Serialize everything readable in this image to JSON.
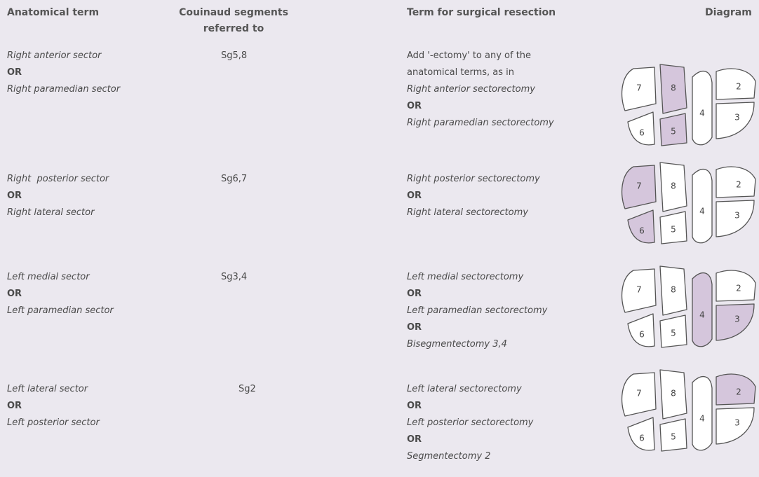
{
  "header": {
    "anatomical_term": "Anatomical term",
    "couinaud": [
      "Couinaud segments",
      "referred to"
    ],
    "resection": "Term for surgical resection",
    "diagram": "Diagram"
  },
  "rows": [
    {
      "term": [
        "Right anterior sector",
        "OR",
        "Right paramedian sector"
      ],
      "segments": "Sg5,8",
      "resection": [
        "Add '-ectomy' to any of the",
        "anatomical terms, as in",
        "Right anterior sectorectomy",
        "OR",
        "Right paramedian sectorectomy"
      ],
      "diagram": {
        "labels": [
          "7",
          "8",
          "2",
          "4",
          "3",
          "6",
          "5"
        ],
        "highlighted": [
          false,
          true,
          false,
          false,
          false,
          false,
          true
        ]
      }
    },
    {
      "term": [
        "Right  posterior sector",
        "OR",
        "Right lateral sector"
      ],
      "segments": "Sg6,7",
      "resection": [
        "Right posterior sectorectomy",
        "OR",
        "Right lateral sectorectomy"
      ],
      "diagram": {
        "labels": [
          "7",
          "8",
          "2",
          "4",
          "3",
          "6",
          "5"
        ],
        "highlighted": [
          true,
          false,
          false,
          false,
          false,
          true,
          false
        ]
      }
    },
    {
      "term": [
        "Left medial sector",
        "OR",
        "Left paramedian sector"
      ],
      "segments": "Sg3,4",
      "resection": [
        "Left medial sectorectomy",
        "OR",
        "Left paramedian sectorectomy",
        "OR",
        "Bisegmentectomy 3,4"
      ],
      "diagram": {
        "labels": [
          "7",
          "8",
          "2",
          "4",
          "3",
          "6",
          "5"
        ],
        "highlighted": [
          false,
          false,
          false,
          true,
          true,
          false,
          false
        ]
      }
    },
    {
      "term": [
        "Left lateral sector",
        "OR",
        "Left posterior sector"
      ],
      "segments": "Sg2",
      "resection": [
        "Left lateral sectorectomy",
        "OR",
        "Left posterior sectorectomy",
        "OR",
        "Segmentectomy 2"
      ],
      "diagram": {
        "labels": [
          "7",
          "8",
          "2",
          "4",
          "3",
          "6",
          "5"
        ],
        "highlighted": [
          false,
          false,
          true,
          false,
          false,
          false,
          false
        ]
      }
    }
  ]
}
